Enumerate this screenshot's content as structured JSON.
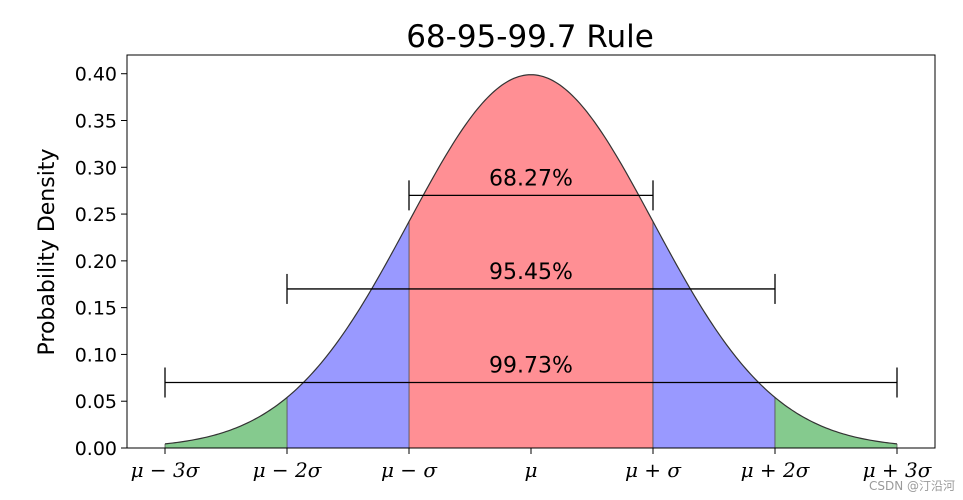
{
  "chart_data": {
    "type": "area",
    "title": "68-95-99.7 Rule",
    "xlabel": "",
    "ylabel": "Probability Density",
    "xlim": [
      -3,
      3
    ],
    "ylim": [
      0,
      0.4
    ],
    "curve": "standard normal density",
    "x_ticks": [
      -3,
      -2,
      -1,
      0,
      1,
      2,
      3
    ],
    "x_tick_labels": [
      "μ − 3σ",
      "μ − 2σ",
      "μ − σ",
      "μ",
      "μ + σ",
      "μ + 2σ",
      "μ + 3σ"
    ],
    "y_ticks": [
      0,
      0.05,
      0.1,
      0.15,
      0.2,
      0.25,
      0.3,
      0.35,
      0.4
    ],
    "y_tick_labels": [
      "0.00",
      "0.05",
      "0.10",
      "0.15",
      "0.20",
      "0.25",
      "0.30",
      "0.35",
      "0.40"
    ],
    "regions": [
      {
        "from": -1,
        "to": 1,
        "color": "#ff8f94"
      },
      {
        "from": -2,
        "to": -1,
        "color": "#9999ff"
      },
      {
        "from": 1,
        "to": 2,
        "color": "#9999ff"
      },
      {
        "from": -3,
        "to": -2,
        "color": "#85ca8e"
      },
      {
        "from": 2,
        "to": 3,
        "color": "#85ca8e"
      }
    ],
    "intervals": [
      {
        "label": "68.27%",
        "from": -1,
        "to": 1,
        "y": 0.27
      },
      {
        "label": "95.45%",
        "from": -2,
        "to": 2,
        "y": 0.17
      },
      {
        "label": "99.73%",
        "from": -3,
        "to": 3,
        "y": 0.07
      }
    ],
    "grid": false
  },
  "watermark": "CSDN @汀沿河"
}
